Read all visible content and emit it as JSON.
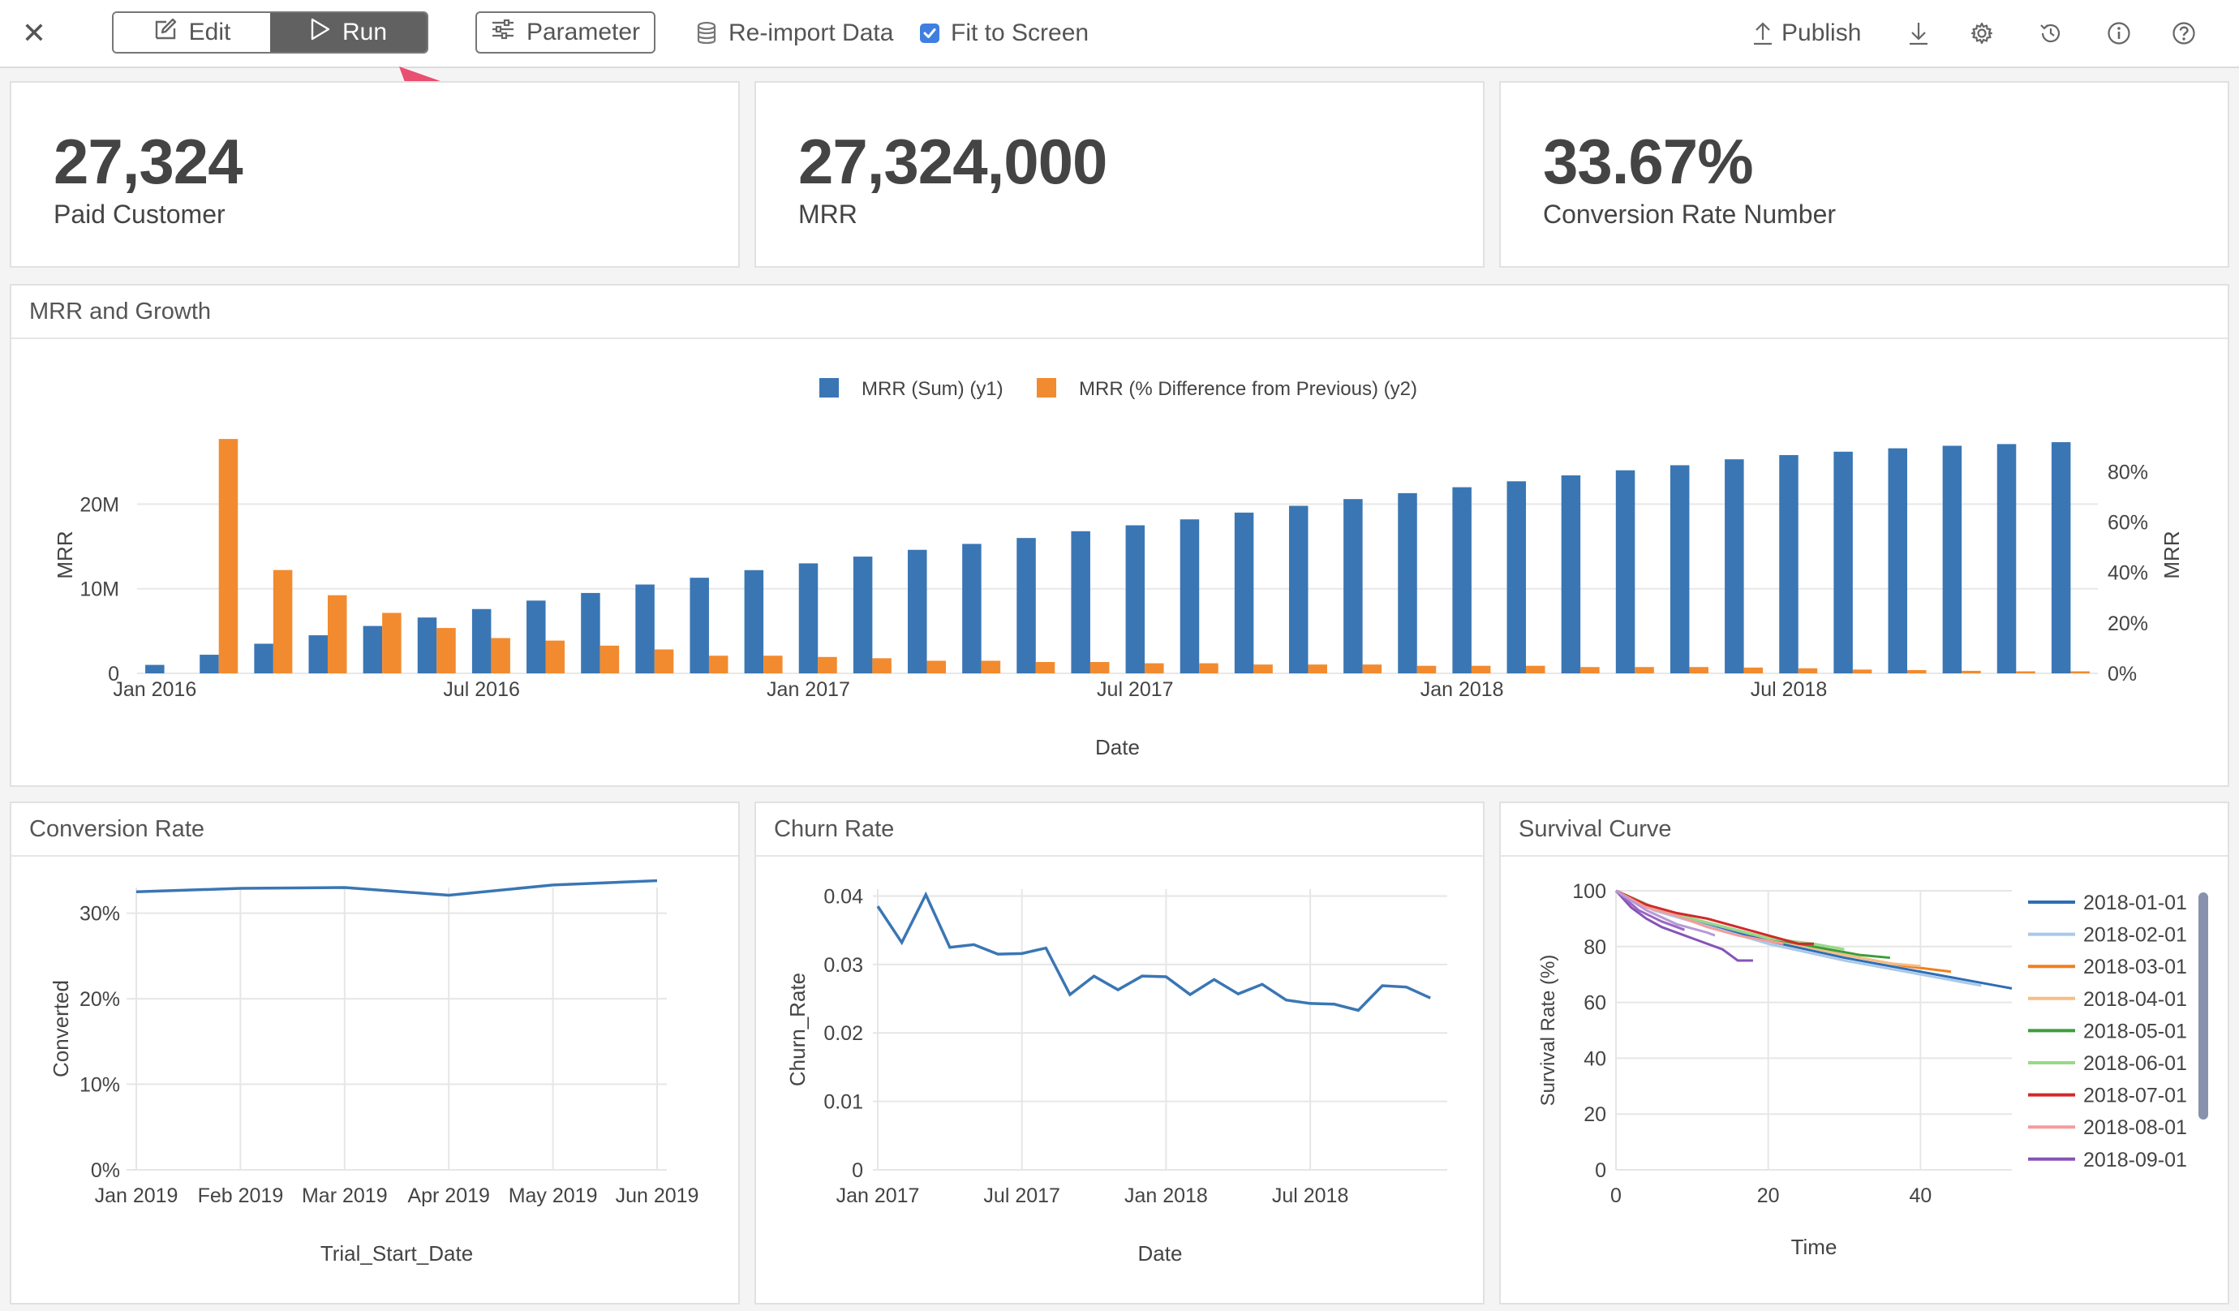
{
  "toolbar": {
    "close_glyph": "✕",
    "edit_label": "Edit",
    "run_label": "Run",
    "parameter_label": "Parameter",
    "reimport_label": "Re-import Data",
    "fit_label": "Fit to Screen",
    "fit_checked": true,
    "publish_label": "Publish",
    "icons": [
      "close-icon",
      "edit-icon",
      "play-icon",
      "sliders-icon",
      "database-icon",
      "checkbox-checked-icon",
      "upload-icon",
      "download-icon",
      "gear-icon",
      "history-icon",
      "info-icon",
      "help-icon"
    ]
  },
  "kpis": [
    {
      "value": "27,324",
      "label": "Paid Customer"
    },
    {
      "value": "27,324,000",
      "label": "MRR"
    },
    {
      "value": "33.67%",
      "label": "Conversion Rate Number"
    }
  ],
  "colors": {
    "blue": "#3a76b4",
    "orange": "#f28b2f",
    "annotation_arrow": "#e94f70"
  },
  "cards": {
    "mrr_title": "MRR and Growth",
    "conversion_title": "Conversion Rate",
    "churn_title": "Churn Rate",
    "survival_title": "Survival Curve"
  },
  "chart_data": [
    {
      "id": "mrr-growth",
      "type": "bar",
      "title": "MRR and Growth",
      "xlabel": "Date",
      "ylabel": "MRR",
      "y2label": "MRR",
      "legend_position": "top-center",
      "grid": true,
      "x_tick_labels": [
        "Jan 2016",
        "Jul 2016",
        "Jan 2017",
        "Jul 2017",
        "Jan 2018",
        "Jul 2018"
      ],
      "x_tick_index": [
        0,
        6,
        12,
        18,
        24,
        30
      ],
      "y_ticks": [
        "0",
        "10M",
        "20M"
      ],
      "y_tick_values": [
        0,
        10000000,
        20000000
      ],
      "y2_ticks": [
        "0%",
        "20%",
        "40%",
        "60%",
        "80%"
      ],
      "y2_tick_values": [
        0,
        20,
        40,
        60,
        80
      ],
      "ylim": [
        0,
        28000000
      ],
      "y2lim": [
        0,
        94
      ],
      "series": [
        {
          "name": "MRR (Sum) (y1)",
          "axis": "y1",
          "values": [
            1000000,
            2200000,
            3500000,
            4500000,
            5600000,
            6600000,
            7600000,
            8600000,
            9500000,
            10500000,
            11300000,
            12200000,
            13000000,
            13800000,
            14600000,
            15300000,
            16000000,
            16800000,
            17500000,
            18200000,
            19000000,
            19800000,
            20600000,
            21300000,
            22000000,
            22700000,
            23400000,
            24000000,
            24600000,
            25300000,
            25800000,
            26200000,
            26600000,
            26900000,
            27100000,
            27324000
          ]
        },
        {
          "name": "MRR (% Difference from Previous) (y2)",
          "axis": "y2",
          "values": [
            null,
            93,
            41,
            31,
            24,
            18,
            14,
            13,
            11,
            9.5,
            7,
            7,
            6.5,
            6,
            5,
            5,
            4.5,
            4.5,
            4,
            4,
            3.5,
            3.5,
            3.5,
            3,
            3,
            3,
            2.5,
            2.5,
            2.5,
            2.3,
            2,
            1.5,
            1.3,
            1,
            0.8,
            0.8
          ]
        }
      ]
    },
    {
      "id": "conversion-rate",
      "type": "line",
      "title": "Conversion Rate",
      "xlabel": "Trial_Start_Date",
      "ylabel": "Converted",
      "x": [
        "Jan 2019",
        "Feb 2019",
        "Mar 2019",
        "Apr 2019",
        "May 2019",
        "Jun 2019"
      ],
      "y_ticks": [
        "0%",
        "10%",
        "20%",
        "30%"
      ],
      "y_tick_values": [
        0,
        10,
        20,
        30
      ],
      "ylim": [
        0,
        33
      ],
      "grid": true,
      "series": [
        {
          "values": [
            32.5,
            32.9,
            33.0,
            32.1,
            33.3,
            33.8
          ]
        }
      ]
    },
    {
      "id": "churn-rate",
      "type": "line",
      "title": "Churn Rate",
      "xlabel": "Date",
      "ylabel": "Churn_Rate",
      "x_tick_labels": [
        "Jan 2017",
        "Jul 2017",
        "Jan 2018",
        "Jul 2018"
      ],
      "x_tick_index": [
        0,
        6,
        12,
        18
      ],
      "y_ticks": [
        "0",
        "0.01",
        "0.02",
        "0.03",
        "0.04"
      ],
      "y_tick_values": [
        0,
        0.01,
        0.02,
        0.03,
        0.04
      ],
      "ylim": [
        0,
        0.041
      ],
      "grid": true,
      "series": [
        {
          "values": [
            0.0385,
            0.0332,
            0.0402,
            0.0325,
            0.0329,
            0.0315,
            0.0316,
            0.0324,
            0.0256,
            0.0283,
            0.0263,
            0.0283,
            0.0282,
            0.0256,
            0.0278,
            0.0257,
            0.0271,
            0.0248,
            0.0243,
            0.0242,
            0.0233,
            0.0269,
            0.0267,
            0.0251
          ]
        }
      ]
    },
    {
      "id": "survival-curve",
      "type": "line",
      "title": "Survival Curve",
      "xlabel": "Time",
      "ylabel": "Survival Rate (%)",
      "x_ticks": [
        "0",
        "20",
        "40"
      ],
      "x_tick_values": [
        0,
        20,
        40
      ],
      "xlim": [
        0,
        52
      ],
      "y_ticks": [
        "0",
        "20",
        "40",
        "60",
        "80",
        "100"
      ],
      "y_tick_values": [
        0,
        20,
        40,
        60,
        80,
        100
      ],
      "ylim": [
        0,
        100
      ],
      "legend_position": "right",
      "grid": true,
      "series": [
        {
          "name": "2018-01-01",
          "color": "#2e6db4",
          "points": [
            [
              0,
              100
            ],
            [
              5,
              93
            ],
            [
              10,
              89
            ],
            [
              20,
              82
            ],
            [
              30,
              76
            ],
            [
              40,
              71
            ],
            [
              50,
              66
            ],
            [
              52,
              65
            ]
          ]
        },
        {
          "name": "2018-02-01",
          "color": "#a9c8ea",
          "points": [
            [
              0,
              100
            ],
            [
              5,
              93
            ],
            [
              10,
              89
            ],
            [
              20,
              81
            ],
            [
              30,
              75
            ],
            [
              40,
              70
            ],
            [
              48,
              66
            ]
          ]
        },
        {
          "name": "2018-03-01",
          "color": "#f07f1d",
          "points": [
            [
              0,
              100
            ],
            [
              5,
              94
            ],
            [
              10,
              90
            ],
            [
              20,
              83
            ],
            [
              30,
              77
            ],
            [
              38,
              73
            ],
            [
              44,
              71
            ]
          ]
        },
        {
          "name": "2018-04-01",
          "color": "#f6bd83",
          "points": [
            [
              0,
              100
            ],
            [
              5,
              94
            ],
            [
              10,
              90
            ],
            [
              20,
              83
            ],
            [
              30,
              77
            ],
            [
              36,
              74
            ],
            [
              40,
              73
            ]
          ]
        },
        {
          "name": "2018-05-01",
          "color": "#3a9f3a",
          "points": [
            [
              0,
              100
            ],
            [
              5,
              94
            ],
            [
              10,
              90
            ],
            [
              20,
              83
            ],
            [
              28,
              79
            ],
            [
              32,
              77
            ],
            [
              36,
              76
            ]
          ]
        },
        {
          "name": "2018-06-01",
          "color": "#99d889",
          "points": [
            [
              0,
              100
            ],
            [
              5,
              94
            ],
            [
              10,
              90
            ],
            [
              20,
              83
            ],
            [
              26,
              81
            ],
            [
              30,
              79
            ]
          ]
        },
        {
          "name": "2018-07-01",
          "color": "#d3282a",
          "points": [
            [
              0,
              100
            ],
            [
              4,
              95
            ],
            [
              8,
              92
            ],
            [
              12,
              90
            ],
            [
              16,
              87
            ],
            [
              20,
              84
            ],
            [
              24,
              81
            ],
            [
              26,
              81
            ]
          ]
        },
        {
          "name": "2018-08-01",
          "color": "#f59c9a",
          "points": [
            [
              0,
              100
            ],
            [
              4,
              94
            ],
            [
              8,
              91
            ],
            [
              12,
              87
            ],
            [
              16,
              84
            ],
            [
              20,
              82
            ],
            [
              22,
              81
            ]
          ]
        },
        {
          "name": "2018-09-01",
          "color": "#8554b7",
          "points": [
            [
              0,
              100
            ],
            [
              2,
              94
            ],
            [
              4,
              90
            ],
            [
              6,
              87
            ],
            [
              10,
              83
            ],
            [
              14,
              79
            ],
            [
              16,
              75
            ],
            [
              18,
              75
            ]
          ]
        },
        {
          "name": "",
          "color": "#9a67c4",
          "points": [
            [
              0,
              100
            ],
            [
              3,
              93
            ],
            [
              6,
              89
            ],
            [
              9,
              86
            ]
          ]
        },
        {
          "name": "",
          "color": "#b89ad6",
          "points": [
            [
              0,
              100
            ],
            [
              4,
              93
            ],
            [
              8,
              88
            ],
            [
              12,
              85
            ],
            [
              13,
              84
            ]
          ]
        }
      ]
    }
  ]
}
